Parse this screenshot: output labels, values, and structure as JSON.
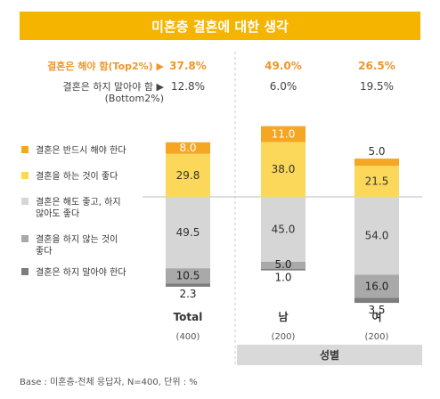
{
  "title": "미혼층 결혼에 대한 생각",
  "footnote": "Base : 미혼층-전체 응답자, N=400, 단위 : %",
  "group_label": "성별",
  "colors": {
    "title_bg": "#f5b400",
    "top2_text": "#f0962a",
    "seg_must": "#f5a623",
    "seg_good": "#fcd85a",
    "seg_either": "#d6d6d6",
    "seg_notgood": "#a9a9a9",
    "seg_mustnot": "#7d7d7d",
    "axis_line": "#bbbbbb",
    "group_bg": "#d9d9d9"
  },
  "summary_rows": [
    {
      "label": "결혼은 해야 함(Top2%) ▶",
      "values": [
        "37.8%",
        "49.0%",
        "26.5%"
      ],
      "style": "top2"
    },
    {
      "label_lines": [
        "결혼은 하지 말아야 함 ▶",
        "(Bottom2%)"
      ],
      "values": [
        "12.8%",
        "6.0%",
        "19.5%"
      ],
      "style": "bottom2"
    }
  ],
  "chart_data": {
    "type": "bar",
    "stacked": true,
    "diverging": true,
    "categories": [
      "Total",
      "남",
      "여"
    ],
    "category_bases": [
      "(400)",
      "(200)",
      "(200)"
    ],
    "series": [
      {
        "name": "결혼은 반드시 해야 한다",
        "values": [
          8.0,
          11.0,
          5.0
        ],
        "color": "#f5a623"
      },
      {
        "name": "결혼을 하는 것이 좋다",
        "values": [
          29.8,
          38.0,
          21.5
        ],
        "color": "#fcd85a"
      },
      {
        "name": "결혼은 해도 좋고, 하지 않아도 좋다",
        "values": [
          49.5,
          45.0,
          54.0
        ],
        "color": "#d6d6d6"
      },
      {
        "name": "결혼을 하지 않는 것이 좋다",
        "values": [
          10.5,
          5.0,
          16.0
        ],
        "color": "#a9a9a9"
      },
      {
        "name": "결혼은 하지 말아야 한다",
        "values": [
          2.3,
          1.0,
          3.5
        ],
        "color": "#7d7d7d"
      }
    ],
    "legend_lines": [
      [
        "결혼은 반드시 해야 한다"
      ],
      [
        "결혼을 하는 것이 좋다"
      ],
      [
        "결혼은 해도 좋고, 하지",
        "않아도 좋다"
      ],
      [
        "결혼을 하지 않는 것이",
        "좋다"
      ],
      [
        "결혼은 하지 말아야 한다"
      ]
    ],
    "legend": "left",
    "unit": "%"
  }
}
